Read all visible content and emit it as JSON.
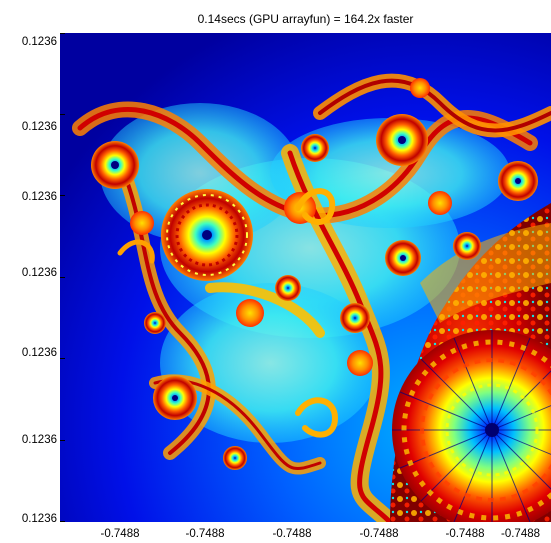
{
  "figure": {
    "title": "0.14secs (GPU arrayfun) = 164.2x faster",
    "y_tick_labels": [
      "0.1236",
      "0.1236",
      "0.1236",
      "0.1236",
      "0.1236",
      "0.1236",
      "0.1236"
    ],
    "x_tick_labels": [
      "-0.7488",
      "-0.7488",
      "-0.7488",
      "-0.7488",
      "-0.7488",
      "-0.7488"
    ],
    "colormap": "jet",
    "colors": {
      "background": "#00008f",
      "low": "#0000ff",
      "mid": "#00ffff",
      "high": "#ffff00",
      "peak": "#ff0000",
      "max": "#800000"
    }
  }
}
